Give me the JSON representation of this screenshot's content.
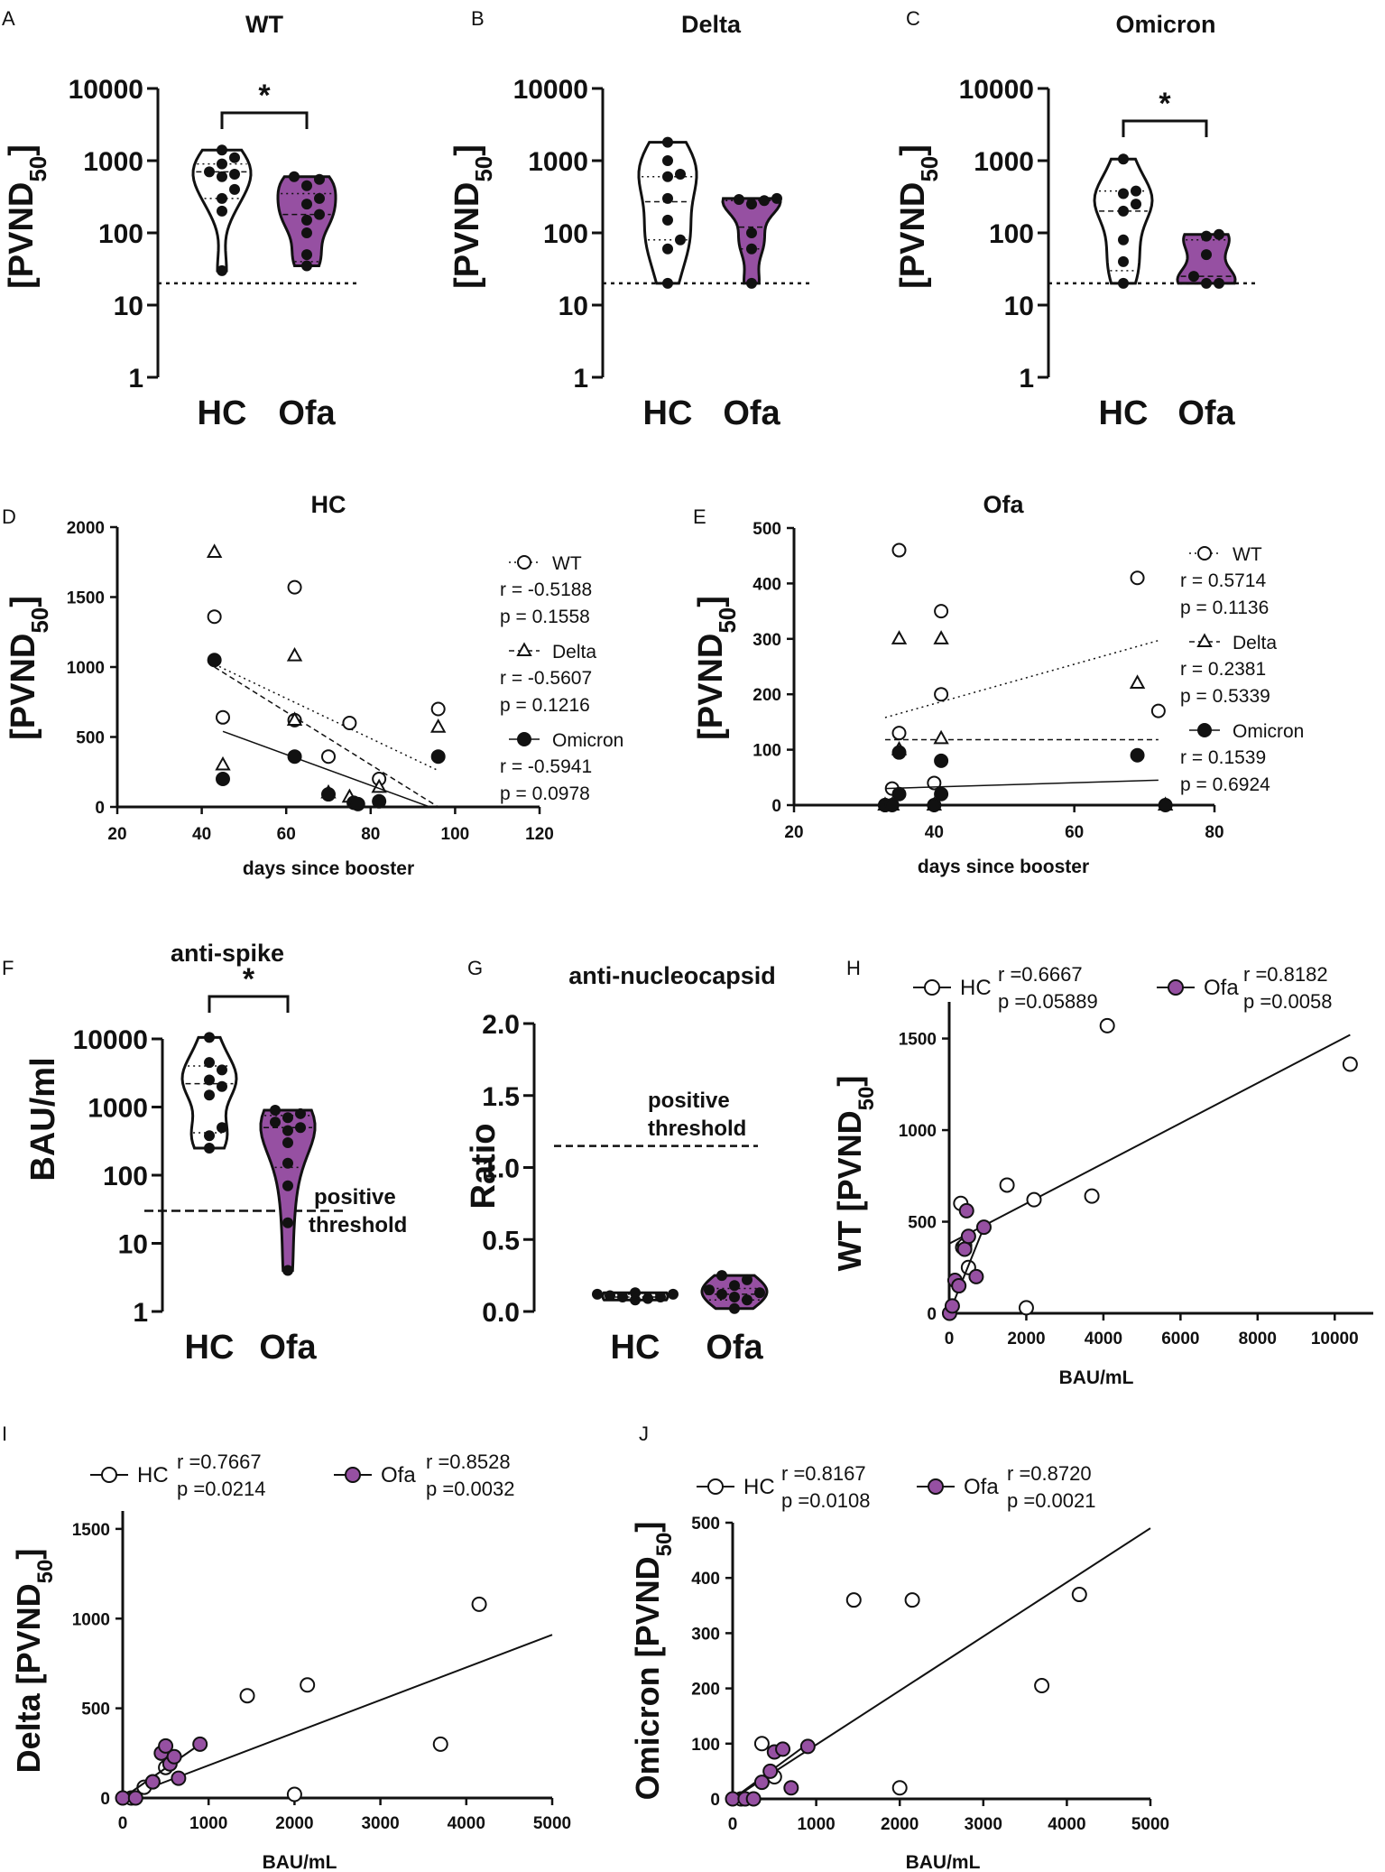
{
  "colors": {
    "ofa": "#9650a2",
    "hc": "#ffffff",
    "ink": "#111111"
  },
  "panel_labels": {
    "A": "A",
    "B": "B",
    "C": "C",
    "D": "D",
    "E": "E",
    "F": "F",
    "G": "G",
    "H": "H",
    "I": "I",
    "J": "J"
  },
  "chart_data": [
    {
      "id": "A",
      "type": "violin",
      "title": "WT",
      "ylabel": "[PVND50]",
      "yscale": "log",
      "ylim": [
        1,
        10000
      ],
      "yticks": [
        "1",
        "10",
        "100",
        "1000",
        "10000"
      ],
      "categories": [
        "HC",
        "Ofa"
      ],
      "significance": "*",
      "threshold": 20,
      "groups": [
        {
          "name": "HC",
          "median": 700,
          "q1": 300,
          "q3": 900,
          "points": [
            30,
            200,
            300,
            400,
            600,
            650,
            700,
            900,
            1100,
            1400
          ]
        },
        {
          "name": "Ofa",
          "median": 180,
          "q1": 40,
          "q3": 350,
          "points": [
            35,
            50,
            100,
            150,
            180,
            250,
            300,
            450,
            550,
            600
          ]
        }
      ]
    },
    {
      "id": "B",
      "type": "violin",
      "title": "Delta",
      "ylabel": "[PVND50]",
      "yscale": "log",
      "ylim": [
        1,
        10000
      ],
      "yticks": [
        "1",
        "10",
        "100",
        "1000",
        "10000"
      ],
      "categories": [
        "HC",
        "Ofa"
      ],
      "significance": "",
      "threshold": 20,
      "groups": [
        {
          "name": "HC",
          "median": 270,
          "q1": 80,
          "q3": 600,
          "points": [
            20,
            60,
            80,
            150,
            300,
            600,
            650,
            1000,
            1800
          ]
        },
        {
          "name": "Ofa",
          "median": 120,
          "q1": 60,
          "q3": 280,
          "points": [
            20,
            60,
            100,
            250,
            280,
            290,
            300
          ]
        }
      ]
    },
    {
      "id": "C",
      "type": "violin",
      "title": "Omicron",
      "ylabel": "[PVND50]",
      "yscale": "log",
      "ylim": [
        1,
        10000
      ],
      "yticks": [
        "1",
        "10",
        "100",
        "1000",
        "10000"
      ],
      "categories": [
        "HC",
        "Ofa"
      ],
      "significance": "*",
      "threshold": 20,
      "groups": [
        {
          "name": "HC",
          "median": 200,
          "q1": 30,
          "q3": 380,
          "points": [
            20,
            40,
            80,
            200,
            250,
            350,
            380,
            1050
          ]
        },
        {
          "name": "Ofa",
          "median": 25,
          "q1": 20,
          "q3": 80,
          "points": [
            20,
            20,
            25,
            50,
            90,
            95
          ]
        }
      ]
    },
    {
      "id": "D",
      "type": "scatter",
      "title": "HC",
      "ylabel": "[PVND50]",
      "xlabel": "days since booster",
      "xlim": [
        20,
        120
      ],
      "ylim": [
        0,
        2000
      ],
      "xticks": [
        "20",
        "40",
        "60",
        "80",
        "100",
        "120"
      ],
      "yticks": [
        "0",
        "500",
        "1000",
        "1500",
        "2000"
      ],
      "series": [
        {
          "name": "WT",
          "marker": "open-circle",
          "line": "dotted",
          "r": "r = -0.5188",
          "p": "p = 0.1558",
          "x": [
            43,
            45,
            62,
            62,
            70,
            75,
            82,
            96
          ],
          "y": [
            1360,
            640,
            1570,
            620,
            360,
            600,
            200,
            700
          ],
          "fit": [
            [
              43,
              1020
            ],
            [
              96,
              260
            ]
          ]
        },
        {
          "name": "Delta",
          "marker": "open-triangle",
          "line": "dashed",
          "r": "r = -0.5607",
          "p": "p = 0.1216",
          "x": [
            43,
            45,
            62,
            62,
            70,
            75,
            82,
            96
          ],
          "y": [
            1820,
            300,
            1080,
            620,
            100,
            70,
            140,
            570
          ],
          "fit": [
            [
              43,
              1000
            ],
            [
              96,
              0
            ]
          ]
        },
        {
          "name": "Omicron",
          "marker": "filled-circle",
          "line": "solid",
          "r": "r = -0.5941",
          "p": "p = 0.0978",
          "x": [
            43,
            45,
            62,
            70,
            76,
            77,
            82,
            96
          ],
          "y": [
            1050,
            200,
            360,
            90,
            30,
            20,
            40,
            360
          ],
          "fit": [
            [
              45,
              540
            ],
            [
              94,
              0
            ]
          ]
        }
      ]
    },
    {
      "id": "E",
      "type": "scatter",
      "title": "Ofa",
      "ylabel": "[PVND50]",
      "xlabel": "days since booster",
      "xlim": [
        20,
        80
      ],
      "ylim": [
        0,
        500
      ],
      "xticks": [
        "20",
        "40",
        "60",
        "80"
      ],
      "yticks": [
        "0",
        "100",
        "200",
        "300",
        "400",
        "500"
      ],
      "series": [
        {
          "name": "WT",
          "marker": "open-circle",
          "line": "dotted",
          "r": "r = 0.5714",
          "p": "p = 0.1136",
          "x": [
            33,
            34,
            35,
            35,
            40,
            41,
            41,
            69,
            72
          ],
          "y": [
            0,
            30,
            460,
            130,
            40,
            350,
            200,
            410,
            170
          ],
          "fit": [
            [
              33,
              158
            ],
            [
              72,
              297
            ]
          ]
        },
        {
          "name": "Delta",
          "marker": "open-triangle",
          "line": "dashed",
          "r": "r = 0.2381",
          "p": "p = 0.5339",
          "x": [
            33,
            34,
            35,
            35,
            40,
            41,
            41,
            69,
            73
          ],
          "y": [
            0,
            0,
            300,
            100,
            0,
            300,
            120,
            220,
            0
          ],
          "fit": [
            [
              33,
              118
            ],
            [
              72,
              118
            ]
          ]
        },
        {
          "name": "Omicron",
          "marker": "filled-circle",
          "line": "solid",
          "r": "r = 0.1539",
          "p": "p = 0.6924",
          "x": [
            33,
            34,
            35,
            35,
            40,
            41,
            41,
            69,
            73
          ],
          "y": [
            0,
            0,
            20,
            95,
            0,
            80,
            20,
            90,
            0
          ],
          "fit": [
            [
              33,
              30
            ],
            [
              72,
              45
            ]
          ]
        }
      ]
    },
    {
      "id": "F",
      "type": "violin",
      "title": "anti-spike",
      "ylabel": "BAU/ml",
      "yscale": "log",
      "ylim": [
        1,
        10000
      ],
      "yticks": [
        "1",
        "10",
        "100",
        "1000",
        "10000"
      ],
      "categories": [
        "HC",
        "Ofa"
      ],
      "significance": "*",
      "threshold": 30,
      "threshold_label": [
        "positive",
        "threshold"
      ],
      "groups": [
        {
          "name": "HC",
          "median": 2200,
          "q1": 420,
          "q3": 4000,
          "points": [
            250,
            380,
            500,
            1500,
            2000,
            2500,
            3500,
            4500,
            10500
          ]
        },
        {
          "name": "Ofa",
          "median": 500,
          "q1": 130,
          "q3": 750,
          "points": [
            4,
            20,
            70,
            150,
            300,
            450,
            500,
            600,
            700,
            800,
            900
          ]
        }
      ]
    },
    {
      "id": "G",
      "type": "violin",
      "title": "anti-nucleocapsid",
      "ylabel": "Ratio",
      "yscale": "linear",
      "ylim": [
        0,
        2.0
      ],
      "yticks": [
        "0.0",
        "0.5",
        "1.0",
        "1.5",
        "2.0"
      ],
      "categories": [
        "HC",
        "Ofa"
      ],
      "significance": "",
      "threshold": 1.15,
      "threshold_label": [
        "positive",
        "threshold"
      ],
      "groups": [
        {
          "name": "HC",
          "median": 0.1,
          "q1": 0.08,
          "q3": 0.12,
          "points": [
            0.08,
            0.09,
            0.1,
            0.1,
            0.11,
            0.12,
            0.12,
            0.13
          ]
        },
        {
          "name": "Ofa",
          "median": 0.12,
          "q1": 0.08,
          "q3": 0.16,
          "points": [
            0.02,
            0.08,
            0.1,
            0.12,
            0.13,
            0.15,
            0.18,
            0.22,
            0.25
          ]
        }
      ]
    },
    {
      "id": "H",
      "type": "scatter",
      "ylabel": "WT [PVND50]",
      "xlabel": "BAU/mL",
      "xlim": [
        0,
        11000
      ],
      "ylim": [
        0,
        1700
      ],
      "xticks": [
        "0",
        "2000",
        "4000",
        "6000",
        "8000",
        "10000"
      ],
      "yticks": [
        "0",
        "500",
        "1000",
        "1500"
      ],
      "series": [
        {
          "name": "HC",
          "marker": "open-circle",
          "r": "r =0.6667",
          "p": "p =0.05889",
          "x": [
            300,
            350,
            400,
            500,
            1500,
            2000,
            2200,
            3700,
            4100,
            10400
          ],
          "y": [
            600,
            360,
            370,
            250,
            700,
            30,
            620,
            640,
            1570,
            1360
          ],
          "fit": [
            [
              0,
              380
            ],
            [
              10400,
              1520
            ]
          ]
        },
        {
          "name": "Ofa",
          "marker": "purple-circle",
          "r": "r =0.8182",
          "p": "p =0.0058",
          "x": [
            10,
            80,
            150,
            250,
            400,
            450,
            500,
            700,
            900
          ],
          "y": [
            0,
            40,
            180,
            150,
            350,
            560,
            420,
            200,
            470
          ],
          "fit": [
            [
              0,
              0
            ],
            [
              900,
              470
            ]
          ]
        }
      ]
    },
    {
      "id": "I",
      "type": "scatter",
      "ylabel": "Delta [PVND50]",
      "xlabel": "BAU/mL",
      "xlim": [
        0,
        5000
      ],
      "ylim": [
        0,
        1600
      ],
      "xticks": [
        "0",
        "1000",
        "2000",
        "3000",
        "4000",
        "5000"
      ],
      "yticks": [
        "0",
        "500",
        "1000",
        "1500"
      ],
      "series": [
        {
          "name": "HC",
          "marker": "open-circle",
          "r": "r =0.7667",
          "p": "p =0.0214",
          "x": [
            100,
            250,
            350,
            500,
            1450,
            2000,
            2150,
            3700,
            4150
          ],
          "y": [
            0,
            60,
            90,
            170,
            570,
            20,
            630,
            300,
            1080
          ],
          "fit": [
            [
              0,
              0
            ],
            [
              5000,
              910
            ]
          ]
        },
        {
          "name": "Ofa",
          "marker": "purple-circle",
          "r": "r =0.8528",
          "p": "p =0.0032",
          "x": [
            0,
            150,
            350,
            450,
            500,
            550,
            600,
            650,
            900
          ],
          "y": [
            0,
            0,
            90,
            250,
            290,
            190,
            230,
            110,
            300
          ],
          "fit": [
            [
              0,
              0
            ],
            [
              900,
              300
            ]
          ]
        }
      ]
    },
    {
      "id": "J",
      "type": "scatter",
      "ylabel": "Omicron [PVND50]",
      "xlabel": "BAU/mL",
      "xlim": [
        0,
        5000
      ],
      "ylim": [
        0,
        500
      ],
      "xticks": [
        "0",
        "1000",
        "2000",
        "3000",
        "4000",
        "5000"
      ],
      "yticks": [
        "0",
        "100",
        "200",
        "300",
        "400",
        "500"
      ],
      "series": [
        {
          "name": "HC",
          "marker": "open-circle",
          "r": "r =0.8167",
          "p": "p =0.0108",
          "x": [
            100,
            350,
            500,
            1450,
            2000,
            2150,
            3700,
            4150
          ],
          "y": [
            0,
            100,
            40,
            360,
            20,
            360,
            205,
            370
          ],
          "fit": [
            [
              0,
              0
            ],
            [
              5000,
              490
            ]
          ]
        },
        {
          "name": "Ofa",
          "marker": "purple-circle",
          "r": "r =0.8720",
          "p": "p =0.0021",
          "x": [
            0,
            150,
            250,
            350,
            450,
            500,
            600,
            700,
            900
          ],
          "y": [
            0,
            0,
            0,
            30,
            50,
            85,
            90,
            20,
            95
          ],
          "fit": [
            [
              0,
              0
            ],
            [
              900,
              100
            ]
          ]
        }
      ]
    }
  ]
}
